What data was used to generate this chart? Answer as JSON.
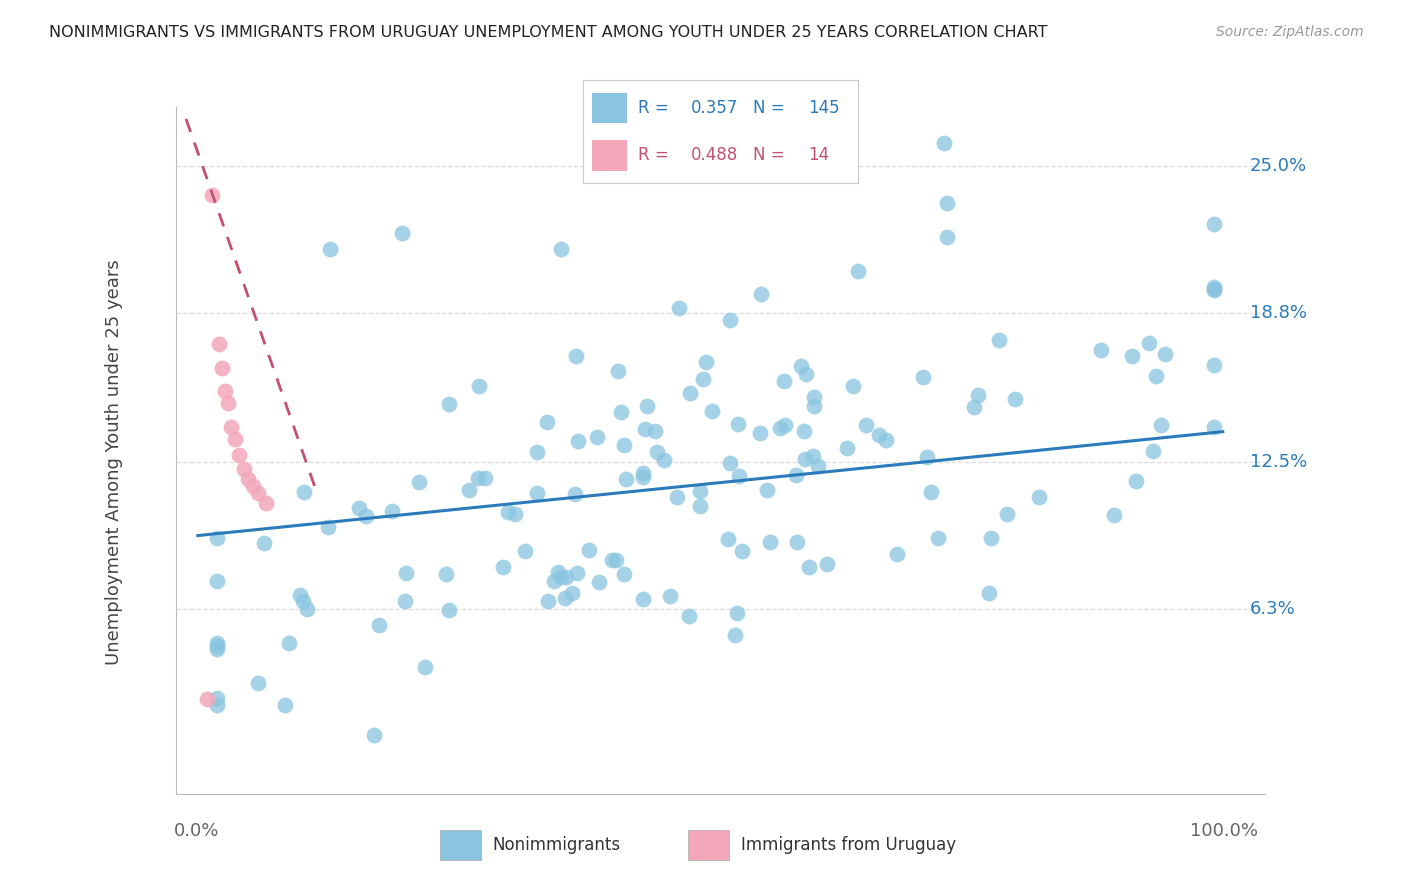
{
  "title": "NONIMMIGRANTS VS IMMIGRANTS FROM URUGUAY UNEMPLOYMENT AMONG YOUTH UNDER 25 YEARS CORRELATION CHART",
  "source": "Source: ZipAtlas.com",
  "ylabel": "Unemployment Among Youth under 25 years",
  "ytick_vals": [
    0.063,
    0.125,
    0.188,
    0.25
  ],
  "ytick_labels": [
    "6.3%",
    "12.5%",
    "18.8%",
    "25.0%"
  ],
  "xlim": [
    -0.02,
    1.04
  ],
  "ylim": [
    -0.015,
    0.275
  ],
  "blue_R": 0.357,
  "blue_N": 145,
  "pink_R": 0.488,
  "pink_N": 14,
  "blue_color": "#89c4e0",
  "pink_color": "#f4a7ba",
  "blue_line_color": "#2b7bba",
  "pink_line_color": "#c45070",
  "legend_blue_label": "Nonimmigrants",
  "legend_pink_label": "Immigrants from Uruguay",
  "background_color": "#ffffff",
  "grid_color": "#dddddd",
  "blue_trend_x": [
    0.0,
    1.0
  ],
  "blue_trend_y": [
    0.094,
    0.138
  ],
  "pink_trend_x": [
    -0.01,
    0.115
  ],
  "pink_trend_y": [
    0.27,
    0.115
  ]
}
